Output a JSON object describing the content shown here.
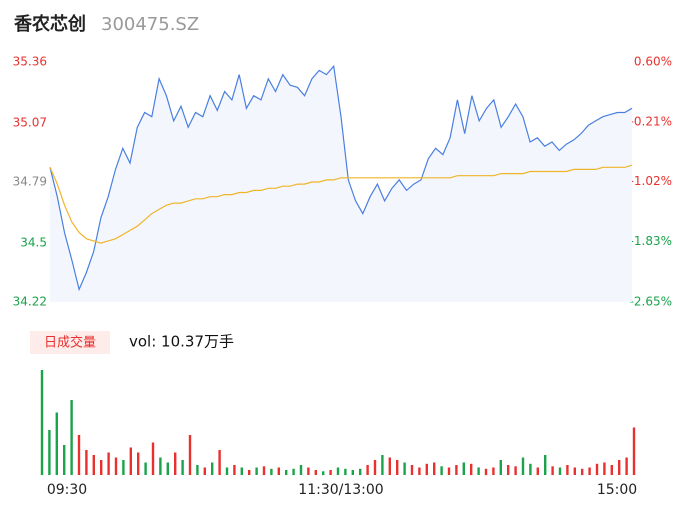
{
  "chart_data": {
    "type": "intraday",
    "title": "香农芯创",
    "subtitle": "300475.SZ",
    "volume_label": "日成交量",
    "volume_total": "vol: 10.37万手",
    "x": [
      0,
      3,
      6,
      9,
      12,
      15,
      18,
      21,
      24,
      27,
      30,
      33,
      36,
      39,
      42,
      45,
      48,
      51,
      54,
      57,
      60,
      63,
      66,
      69,
      72,
      75,
      78,
      81,
      84,
      87,
      90,
      93,
      96,
      99,
      102,
      105,
      108,
      111,
      114,
      117,
      120,
      123,
      126,
      129,
      132,
      135,
      138,
      141,
      144,
      147,
      150,
      153,
      156,
      159,
      162,
      165,
      168,
      171,
      174,
      177,
      180,
      183,
      186,
      189,
      192,
      195,
      198,
      201,
      204,
      207,
      210,
      213,
      216,
      219,
      222,
      225,
      228,
      231,
      234,
      237,
      240
    ],
    "xlim": [
      0,
      240
    ],
    "xticks": [
      {
        "value": 0,
        "label": "09:30"
      },
      {
        "value": 120,
        "label": "11:30/13:00"
      },
      {
        "value": 240,
        "label": "15:00"
      }
    ],
    "ylim": [
      34.22,
      35.36
    ],
    "yticks": [
      34.22,
      34.5,
      {
        "value": 34.79,
        "label": "34.79"
      },
      35.07,
      35.36
    ],
    "y2lim": [
      -2.65,
      0.6
    ],
    "y2ticks": [
      {
        "value": -2.65,
        "label": "-2.65%"
      },
      {
        "value": -1.83,
        "label": "-1.83%"
      },
      {
        "value": -1.02,
        "label": "-1.02%"
      },
      {
        "value": -0.21,
        "label": "-0.21%"
      },
      {
        "value": 0.6,
        "label": "0.60%"
      }
    ],
    "up_color": "#e8312f",
    "down_color": "#1aa34a",
    "flat_color": "#888888",
    "series": [
      {
        "name": "price",
        "color": "#4a7fe0",
        "values": [
          34.86,
          34.72,
          34.55,
          34.42,
          34.28,
          34.36,
          34.46,
          34.62,
          34.72,
          34.85,
          34.95,
          34.88,
          35.05,
          35.12,
          35.1,
          35.28,
          35.2,
          35.08,
          35.15,
          35.05,
          35.12,
          35.1,
          35.2,
          35.13,
          35.22,
          35.18,
          35.3,
          35.14,
          35.2,
          35.18,
          35.28,
          35.22,
          35.3,
          35.25,
          35.24,
          35.2,
          35.28,
          35.32,
          35.3,
          35.34,
          35.1,
          34.8,
          34.7,
          34.64,
          34.72,
          34.78,
          34.7,
          34.76,
          34.8,
          34.75,
          34.78,
          34.8,
          34.9,
          34.95,
          34.92,
          35.0,
          35.18,
          35.02,
          35.2,
          35.08,
          35.14,
          35.18,
          35.05,
          35.1,
          35.16,
          35.1,
          34.98,
          35.0,
          34.96,
          34.98,
          34.94,
          34.97,
          34.99,
          35.02,
          35.06,
          35.08,
          35.1,
          35.11,
          35.12,
          35.12,
          35.14
        ]
      },
      {
        "name": "average",
        "color": "#f0b429",
        "values": [
          34.86,
          34.78,
          34.68,
          34.6,
          34.55,
          34.52,
          34.51,
          34.5,
          34.51,
          34.52,
          34.54,
          34.56,
          34.58,
          34.61,
          34.64,
          34.66,
          34.68,
          34.69,
          34.69,
          34.7,
          34.71,
          34.71,
          34.72,
          34.72,
          34.73,
          34.73,
          34.74,
          34.74,
          34.75,
          34.75,
          34.76,
          34.76,
          34.77,
          34.77,
          34.78,
          34.78,
          34.79,
          34.79,
          34.8,
          34.8,
          34.81,
          34.81,
          34.81,
          34.81,
          34.81,
          34.81,
          34.81,
          34.81,
          34.81,
          34.81,
          34.81,
          34.81,
          34.81,
          34.81,
          34.81,
          34.81,
          34.82,
          34.82,
          34.82,
          34.82,
          34.82,
          34.82,
          34.83,
          34.83,
          34.83,
          34.83,
          34.84,
          34.84,
          34.84,
          34.84,
          34.84,
          34.84,
          34.85,
          34.85,
          34.85,
          34.85,
          34.86,
          34.86,
          34.86,
          34.86,
          34.87
        ]
      }
    ],
    "volume": [
      4200,
      1800,
      2500,
      1200,
      3000,
      1600,
      1000,
      800,
      600,
      900,
      700,
      600,
      1100,
      900,
      500,
      1300,
      700,
      500,
      900,
      600,
      1600,
      400,
      300,
      500,
      1000,
      300,
      400,
      300,
      200,
      300,
      350,
      250,
      300,
      200,
      250,
      400,
      300,
      200,
      150,
      200,
      300,
      250,
      200,
      250,
      400,
      600,
      800,
      700,
      600,
      500,
      400,
      300,
      450,
      500,
      350,
      300,
      400,
      500,
      450,
      300,
      250,
      300,
      600,
      400,
      350,
      700,
      450,
      300,
      800,
      350,
      300,
      400,
      300,
      250,
      300,
      450,
      500,
      400,
      600,
      700,
      1900
    ]
  }
}
